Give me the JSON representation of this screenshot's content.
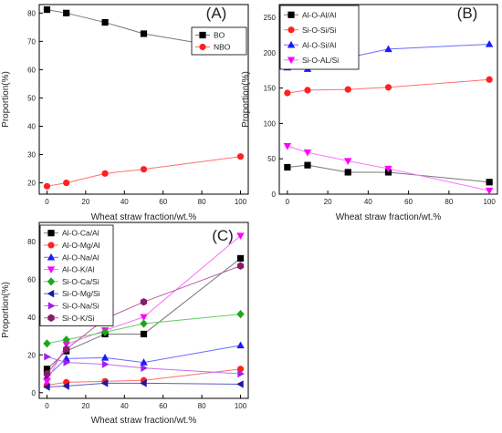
{
  "chart_data": [
    {
      "panel_label": "(A)",
      "type": "line",
      "xlabel": "Wheat straw fraction/wt.%",
      "ylabel": "Proportion(%)",
      "x": [
        0,
        10,
        30,
        50,
        100
      ],
      "xticks": [
        "0",
        "20",
        "40",
        "60",
        "80",
        "100"
      ],
      "xtick_values": [
        0,
        20,
        40,
        60,
        80,
        100
      ],
      "yticks": [
        "20",
        "30",
        "40",
        "50",
        "60",
        "70",
        "80"
      ],
      "ytick_values": [
        20,
        30,
        40,
        50,
        60,
        70,
        80
      ],
      "xlim": [
        -4,
        104
      ],
      "ylim": [
        16,
        83
      ],
      "grid": false,
      "legend_position": "top-right",
      "series": [
        {
          "name": "BO",
          "values": [
            81.2,
            80.0,
            76.7,
            72.7,
            66.9
          ],
          "color": "#000000",
          "line_color": "#777777",
          "marker": "square"
        },
        {
          "name": "NBO",
          "values": [
            18.8,
            20.0,
            23.3,
            24.8,
            29.3
          ],
          "color": "#ff2020",
          "line_color": "#ff7070",
          "marker": "circle"
        }
      ]
    },
    {
      "panel_label": "(B)",
      "type": "line",
      "xlabel": "Wheat straw fraction/wt.%",
      "ylabel": "Proportion(%)",
      "x": [
        0,
        10,
        30,
        50,
        100
      ],
      "xticks": [
        "0",
        "20",
        "40",
        "60",
        "80",
        "100"
      ],
      "xtick_values": [
        0,
        20,
        40,
        60,
        80,
        100
      ],
      "yticks": [
        "0",
        "50",
        "100",
        "150",
        "200",
        "250"
      ],
      "ytick_values": [
        0,
        50,
        100,
        150,
        200,
        250
      ],
      "xlim": [
        -4,
        104
      ],
      "ylim": [
        0,
        268
      ],
      "grid": false,
      "legend_position": "top-left",
      "series": [
        {
          "name": "Al-O-Al/Al",
          "values": [
            38,
            41,
            31,
            31,
            17
          ],
          "color": "#000000",
          "line_color": "#777777",
          "marker": "square"
        },
        {
          "name": "Si-O-Si/Si",
          "values": [
            143,
            147,
            148,
            151,
            162
          ],
          "color": "#ff2020",
          "line_color": "#ff7070",
          "marker": "circle"
        },
        {
          "name": "Al-O-Si/Al",
          "values": [
            179,
            177,
            193,
            205,
            212
          ],
          "color": "#1a1aff",
          "line_color": "#6b6bff",
          "marker": "triangle-up"
        },
        {
          "name": "Si-O-AL/Si",
          "values": [
            68,
            59,
            47,
            36,
            5
          ],
          "color": "#ff00ff",
          "line_color": "#ff70ff",
          "marker": "triangle-down"
        }
      ]
    },
    {
      "panel_label": "(C)",
      "type": "line",
      "xlabel": "Wheat straw fraction/wt.%",
      "ylabel": "Proportion(%)",
      "x": [
        0,
        10,
        30,
        50,
        100
      ],
      "xticks": [
        "0",
        "20",
        "40",
        "60",
        "80",
        "100"
      ],
      "xtick_values": [
        0,
        20,
        40,
        60,
        80,
        100
      ],
      "yticks": [
        "0",
        "20",
        "40",
        "60",
        "80"
      ],
      "ytick_values": [
        0,
        20,
        40,
        60,
        80
      ],
      "xlim": [
        -4,
        104
      ],
      "ylim": [
        -3,
        90
      ],
      "grid": false,
      "legend_position": "top-left",
      "series": [
        {
          "name": "Al-O-Ca/Al",
          "values": [
            12.5,
            22,
            31,
            31,
            71
          ],
          "color": "#000000",
          "line_color": "#777777",
          "marker": "square"
        },
        {
          "name": "Al-O-Mg/Al",
          "values": [
            4,
            5.5,
            6,
            6.5,
            12.5
          ],
          "color": "#ff2020",
          "line_color": "#ff7070",
          "marker": "circle"
        },
        {
          "name": "Al-O-Na/Al",
          "values": [
            8.5,
            18,
            18.5,
            16,
            25
          ],
          "color": "#1a1aff",
          "line_color": "#6b6bff",
          "marker": "triangle-up"
        },
        {
          "name": "Al-O-K/Al",
          "values": [
            6,
            25.5,
            33,
            40,
            83
          ],
          "color": "#ff00ff",
          "line_color": "#ff70ff",
          "marker": "triangle-down"
        },
        {
          "name": "Si-O-Ca/Si",
          "values": [
            26,
            28,
            32,
            36.5,
            41.5
          ],
          "color": "#1fa51f",
          "line_color": "#5fcf5f",
          "marker": "diamond"
        },
        {
          "name": "Si-O-Mg/Si",
          "values": [
            3,
            3.5,
            5,
            5,
            4.5
          ],
          "color": "#1a1aa8",
          "line_color": "#5c5cc8",
          "marker": "triangle-left"
        },
        {
          "name": "Si-O-Na/Si",
          "values": [
            19,
            16,
            15,
            13,
            10
          ],
          "color": "#a020f0",
          "line_color": "#c070f5",
          "marker": "triangle-right"
        },
        {
          "name": "Si-O-K/Si",
          "values": [
            10,
            23,
            39,
            48,
            67
          ],
          "color": "#8b1a6b",
          "line_color": "#b85c9c",
          "marker": "hexagon"
        }
      ]
    }
  ]
}
